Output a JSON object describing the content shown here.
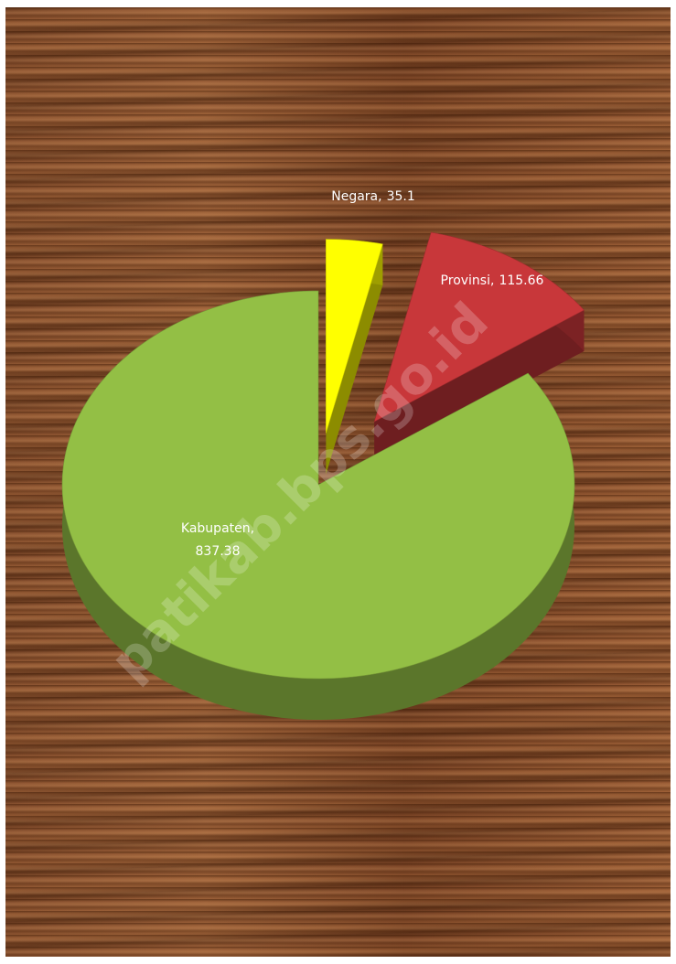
{
  "chart_data": {
    "type": "pie3d",
    "categories": [
      "Negara",
      "Provinsi",
      "Kabupaten"
    ],
    "values": [
      35.1,
      115.66,
      837.38
    ],
    "colors": [
      "#ffff00",
      "#c8373a",
      "#93bf45"
    ],
    "label_separator": ",",
    "watermark": "patikab.bps.go.id"
  }
}
